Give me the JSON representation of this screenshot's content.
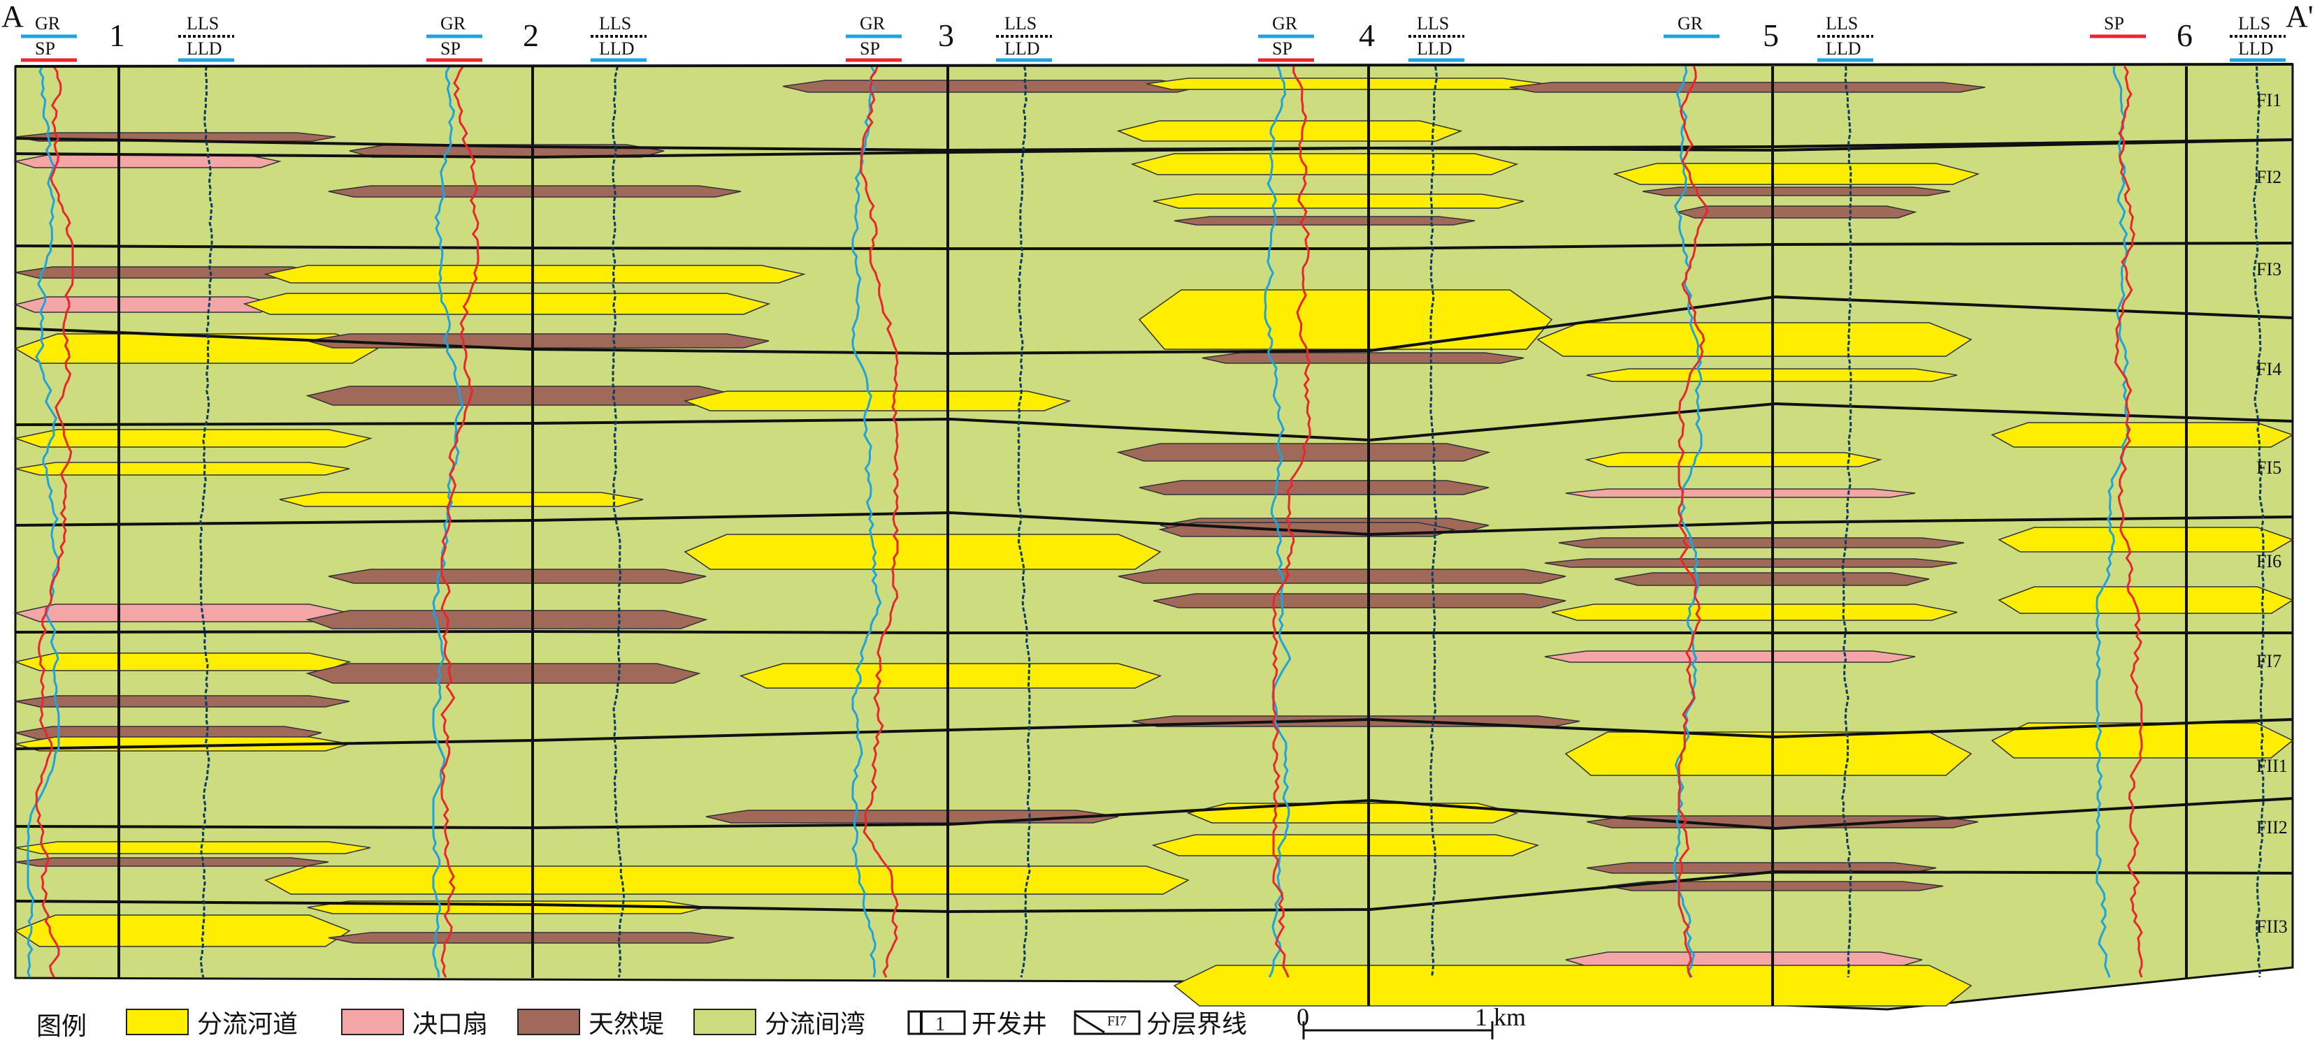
{
  "section": {
    "start_label": "A",
    "end_label": "A'"
  },
  "wells": [
    {
      "number": "1",
      "curve_left_top": "GR",
      "curve_left_bottom": "SP",
      "curve_right_top": "LLS",
      "curve_right_bottom": "LLD"
    },
    {
      "number": "2",
      "curve_left_top": "GR",
      "curve_left_bottom": "SP",
      "curve_right_top": "LLS",
      "curve_right_bottom": "LLD"
    },
    {
      "number": "3",
      "curve_left_top": "GR",
      "curve_left_bottom": "SP",
      "curve_right_top": "LLS",
      "curve_right_bottom": "LLD"
    },
    {
      "number": "4",
      "curve_left_top": "GR",
      "curve_left_bottom": "SP",
      "curve_right_top": "LLS",
      "curve_right_bottom": "LLD"
    },
    {
      "number": "5",
      "curve_left_top": "GR",
      "curve_left_bottom": "",
      "curve_right_top": "LLS",
      "curve_right_bottom": "LLD"
    },
    {
      "number": "6",
      "curve_left_top": "SP",
      "curve_left_bottom": "",
      "curve_right_top": "LLS",
      "curve_right_bottom": "LLD"
    }
  ],
  "layers": [
    "FI1",
    "FI2",
    "FI3",
    "FI4",
    "FI5",
    "FI6",
    "FI7",
    "FII1",
    "FII2",
    "FII3"
  ],
  "legend": {
    "title": "图例",
    "items": [
      {
        "label": "分流河道",
        "color": "#FFEE00"
      },
      {
        "label": "决口扇",
        "color": "#F4A6A6"
      },
      {
        "label": "天然堤",
        "color": "#A0695A"
      },
      {
        "label": "分流间湾",
        "color": "#CCDC7E"
      }
    ],
    "well_symbol_text": "1",
    "well_label": "开发井",
    "boundary_symbol_text": "FI7",
    "boundary_label": "分层界线"
  },
  "scale": {
    "start": "0",
    "end": "1 km"
  },
  "colors": {
    "channel": "#FFEE00",
    "splay": "#F4A6A6",
    "levee": "#A0695A",
    "bay": "#CCDC7E",
    "gr_curve": "#1EA3DC",
    "sp_curve": "#E8262B",
    "res_curve": "#0B3C5D"
  }
}
